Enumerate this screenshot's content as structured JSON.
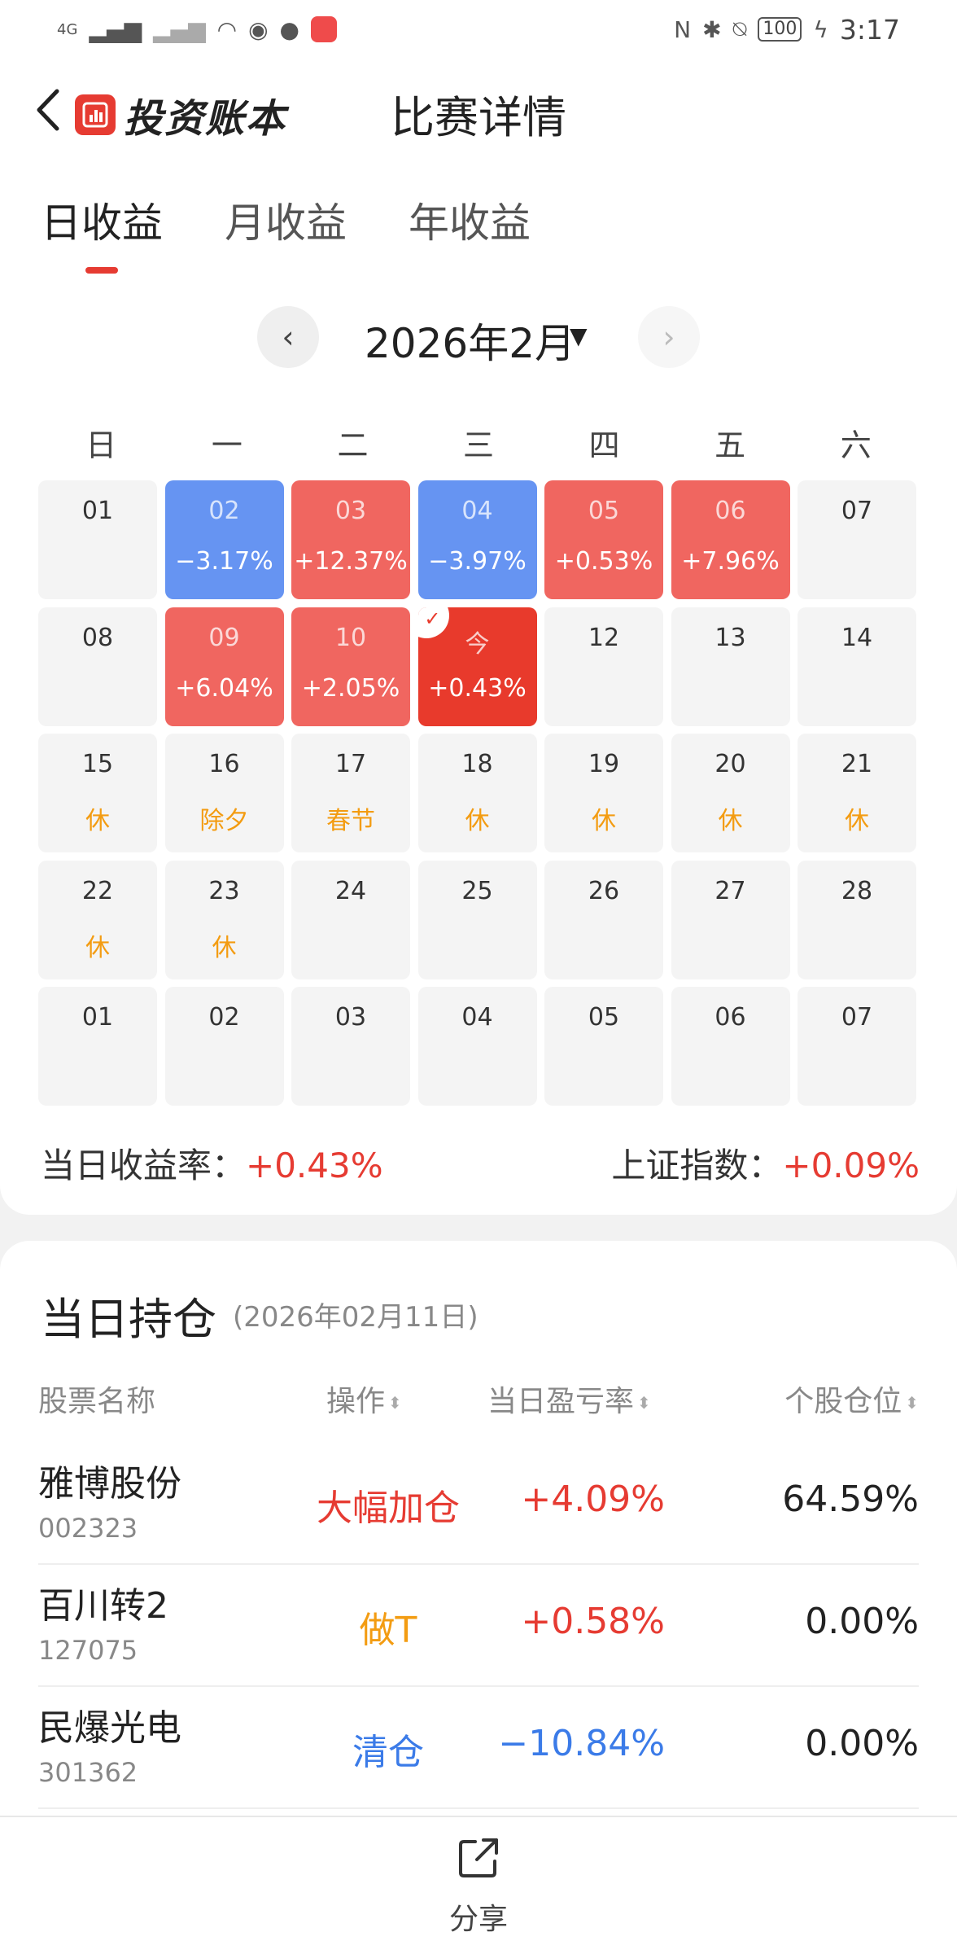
{
  "status_bar": {
    "network": "4G",
    "battery": "100",
    "time": "3:17"
  },
  "header": {
    "brand_name": "投资账本",
    "title": "比赛详情"
  },
  "tabs": [
    {
      "label": "日收益",
      "active": true
    },
    {
      "label": "月收益",
      "active": false
    },
    {
      "label": "年收益",
      "active": false
    }
  ],
  "calendar": {
    "month_label": "2026年2月",
    "weekdays": [
      "日",
      "一",
      "二",
      "三",
      "四",
      "五",
      "六"
    ],
    "weeks": [
      [
        {
          "day": "01",
          "sub": "",
          "kind": "plain"
        },
        {
          "day": "02",
          "sub": "−3.17%",
          "kind": "down"
        },
        {
          "day": "03",
          "sub": "+12.37%",
          "kind": "up"
        },
        {
          "day": "04",
          "sub": "−3.97%",
          "kind": "down"
        },
        {
          "day": "05",
          "sub": "+0.53%",
          "kind": "up"
        },
        {
          "day": "06",
          "sub": "+7.96%",
          "kind": "up"
        },
        {
          "day": "07",
          "sub": "",
          "kind": "plain"
        }
      ],
      [
        {
          "day": "08",
          "sub": "",
          "kind": "plain"
        },
        {
          "day": "09",
          "sub": "+6.04%",
          "kind": "up"
        },
        {
          "day": "10",
          "sub": "+2.05%",
          "kind": "up"
        },
        {
          "day": "今",
          "sub": "+0.43%",
          "kind": "today"
        },
        {
          "day": "12",
          "sub": "",
          "kind": "plain"
        },
        {
          "day": "13",
          "sub": "",
          "kind": "plain"
        },
        {
          "day": "14",
          "sub": "",
          "kind": "plain"
        }
      ],
      [
        {
          "day": "15",
          "sub": "休",
          "kind": "holiday"
        },
        {
          "day": "16",
          "sub": "除夕",
          "kind": "holiday"
        },
        {
          "day": "17",
          "sub": "春节",
          "kind": "holiday"
        },
        {
          "day": "18",
          "sub": "休",
          "kind": "holiday"
        },
        {
          "day": "19",
          "sub": "休",
          "kind": "holiday"
        },
        {
          "day": "20",
          "sub": "休",
          "kind": "holiday"
        },
        {
          "day": "21",
          "sub": "休",
          "kind": "holiday"
        }
      ],
      [
        {
          "day": "22",
          "sub": "休",
          "kind": "holiday"
        },
        {
          "day": "23",
          "sub": "休",
          "kind": "holiday"
        },
        {
          "day": "24",
          "sub": "",
          "kind": "plain"
        },
        {
          "day": "25",
          "sub": "",
          "kind": "plain"
        },
        {
          "day": "26",
          "sub": "",
          "kind": "plain"
        },
        {
          "day": "27",
          "sub": "",
          "kind": "plain"
        },
        {
          "day": "28",
          "sub": "",
          "kind": "plain"
        }
      ],
      [
        {
          "day": "01",
          "sub": "",
          "kind": "plain"
        },
        {
          "day": "02",
          "sub": "",
          "kind": "plain"
        },
        {
          "day": "03",
          "sub": "",
          "kind": "plain"
        },
        {
          "day": "04",
          "sub": "",
          "kind": "plain"
        },
        {
          "day": "05",
          "sub": "",
          "kind": "plain"
        },
        {
          "day": "06",
          "sub": "",
          "kind": "plain"
        },
        {
          "day": "07",
          "sub": "",
          "kind": "plain"
        }
      ]
    ]
  },
  "summary": {
    "daily_return_label": "当日收益率：",
    "daily_return_value": "+0.43%",
    "index_label": "上证指数：",
    "index_value": "+0.09%"
  },
  "holdings": {
    "title": "当日持仓",
    "date": "(2026年02月11日)",
    "columns": {
      "name": "股票名称",
      "op": "操作",
      "pnl": "当日盈亏率",
      "position": "个股仓位"
    },
    "rows": [
      {
        "name": "雅博股份",
        "code": "002323",
        "op": "大幅加仓",
        "op_color": "red",
        "pnl": "+4.09%",
        "pnl_color": "red",
        "position": "64.59%"
      },
      {
        "name": "百川转2",
        "code": "127075",
        "op": "做T",
        "op_color": "orange",
        "pnl": "+0.58%",
        "pnl_color": "red",
        "position": "0.00%"
      },
      {
        "name": "民爆光电",
        "code": "301362",
        "op": "清仓",
        "op_color": "blue",
        "pnl": "−10.84%",
        "pnl_color": "blue",
        "position": "0.00%"
      }
    ]
  },
  "bottom": {
    "share_label": "分享"
  },
  "colors": {
    "up": "#f06660",
    "down": "#6694f2",
    "today": "#e83a2c",
    "accent": "#e63b32",
    "holiday": "#f39c12"
  }
}
